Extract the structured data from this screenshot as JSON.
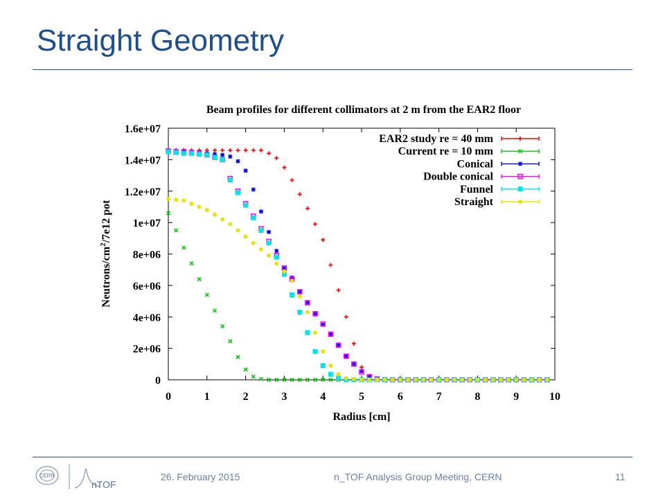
{
  "slide": {
    "title": "Straight Geometry",
    "footer": {
      "date": "26. February 2015",
      "meeting": "n_TOF Analysis Group Meeting, CERN",
      "page": "11"
    },
    "logos": [
      {
        "name": "cern-logo",
        "text": "CERN"
      },
      {
        "name": "ntof-logo",
        "text": "nTOF"
      }
    ],
    "colors": {
      "title": "#1f4e8f",
      "footer_text": "#6a7fa6",
      "rule": "#1f4e8f"
    }
  },
  "chart_data": {
    "type": "scatter",
    "title": "Beam profiles for different collimators at 2 m from the EAR2 floor",
    "xlabel": "Radius [cm]",
    "ylabel_parts": [
      "Neutrons/cm",
      "2",
      "/7e12 pot"
    ],
    "xlim": [
      0,
      10
    ],
    "ylim": [
      0,
      16000000
    ],
    "xticks": [
      0,
      1,
      2,
      3,
      4,
      5,
      6,
      7,
      8,
      9,
      10
    ],
    "xtick_labels": [
      "0",
      "1",
      "2",
      "3",
      "4",
      "5",
      "6",
      "7",
      "8",
      "9",
      "10"
    ],
    "yticks": [
      0,
      2000000,
      4000000,
      6000000,
      8000000,
      10000000,
      12000000,
      14000000,
      16000000
    ],
    "ytick_labels": [
      "0",
      "2e+06",
      "4e+06",
      "6e+06",
      "8e+06",
      "1e+07",
      "1.2e+07",
      "1.4e+07",
      "1.6e+07"
    ],
    "grid": false,
    "legend_position": "top-right",
    "series": [
      {
        "name": "EAR2 study re = 40 mm",
        "color": "#ff0000",
        "marker": "plus",
        "x": [
          0,
          0.2,
          0.4,
          0.6,
          0.8,
          1.0,
          1.2,
          1.4,
          1.6,
          1.8,
          2.0,
          2.2,
          2.4,
          2.6,
          2.8,
          3.0,
          3.2,
          3.4,
          3.6,
          3.8,
          4.0,
          4.2,
          4.4,
          4.6,
          4.8,
          5.0,
          5.2,
          5.4,
          5.6,
          5.8,
          6.0,
          6.2,
          6.4,
          6.6,
          6.8,
          7.0,
          7.2,
          7.4,
          7.6,
          7.8,
          8.0,
          8.2,
          8.4,
          8.6,
          8.8,
          9.0,
          9.2,
          9.4,
          9.6,
          9.8
        ],
        "y": [
          14600000,
          14600000,
          14600000,
          14600000,
          14600000,
          14600000,
          14600000,
          14600000,
          14600000,
          14600000,
          14600000,
          14600000,
          14600000,
          14400000,
          14100000,
          13500000,
          12700000,
          11800000,
          10900000,
          9900000,
          8900000,
          7300000,
          5700000,
          4000000,
          2300000,
          800000,
          150000,
          50000,
          0,
          0,
          0,
          0,
          0,
          0,
          0,
          0,
          0,
          0,
          0,
          0,
          0,
          0,
          0,
          0,
          0,
          0,
          0,
          0,
          0,
          0
        ]
      },
      {
        "name": "Current re = 10 mm",
        "color": "#00cc00",
        "marker": "cross",
        "x": [
          0,
          0.2,
          0.4,
          0.6,
          0.8,
          1.0,
          1.2,
          1.4,
          1.6,
          1.8,
          2.0,
          2.2,
          2.4,
          2.6,
          2.8,
          3.0,
          3.2,
          3.4,
          3.6,
          3.8,
          4.0,
          4.2,
          4.4,
          4.6,
          4.8,
          5.0,
          5.2,
          5.4,
          5.6,
          5.8,
          6.0,
          6.2,
          6.4,
          6.6,
          6.8,
          7.0,
          7.2,
          7.4,
          7.6,
          7.8,
          8.0,
          8.2,
          8.4,
          8.6,
          8.8,
          9.0,
          9.2,
          9.4,
          9.6,
          9.8
        ],
        "y": [
          10600000,
          9500000,
          8400000,
          7400000,
          6400000,
          5400000,
          4400000,
          3400000,
          2450000,
          1450000,
          650000,
          200000,
          50000,
          0,
          0,
          0,
          0,
          0,
          0,
          0,
          0,
          0,
          0,
          0,
          0,
          0,
          0,
          0,
          0,
          0,
          0,
          0,
          0,
          0,
          0,
          0,
          0,
          0,
          0,
          0,
          0,
          0,
          0,
          0,
          0,
          0,
          0,
          0,
          0,
          0
        ]
      },
      {
        "name": "Conical",
        "color": "#0000ff",
        "marker": "asterisk",
        "x": [
          0,
          0.2,
          0.4,
          0.6,
          0.8,
          1.0,
          1.2,
          1.4,
          1.6,
          1.8,
          2.0,
          2.2,
          2.4,
          2.6,
          2.8,
          3.0,
          3.2,
          3.4,
          3.6,
          3.8,
          4.0,
          4.2,
          4.4,
          4.6,
          4.8,
          5.0,
          5.2,
          5.4,
          5.6,
          5.8,
          6.0,
          6.2,
          6.4,
          6.6,
          6.8,
          7.0,
          7.2,
          7.4,
          7.6,
          7.8,
          8.0,
          8.2,
          8.4,
          8.6,
          8.8,
          9.0,
          9.2,
          9.4,
          9.6,
          9.8
        ],
        "y": [
          14600000,
          14550000,
          14550000,
          14500000,
          14450000,
          14400000,
          14350000,
          14300000,
          14200000,
          13900000,
          13300000,
          12100000,
          10700000,
          9400000,
          8200000,
          7100000,
          6500000,
          5600000,
          4900000,
          4200000,
          3500000,
          2900000,
          2200000,
          1500000,
          1000000,
          550000,
          200000,
          50000,
          0,
          0,
          0,
          0,
          0,
          0,
          0,
          0,
          0,
          0,
          0,
          0,
          0,
          0,
          0,
          0,
          0,
          0,
          0,
          0,
          0,
          0
        ]
      },
      {
        "name": "Double conical",
        "color": "#ff00ff",
        "marker": "square",
        "x": [
          0,
          0.2,
          0.4,
          0.6,
          0.8,
          1.0,
          1.2,
          1.4,
          1.6,
          1.8,
          2.0,
          2.2,
          2.4,
          2.6,
          2.8,
          3.0,
          3.2,
          3.4,
          3.6,
          3.8,
          4.0,
          4.2,
          4.4,
          4.6,
          4.8,
          5.0,
          5.2,
          5.4,
          5.6,
          5.8,
          6.0,
          6.2,
          6.4,
          6.6,
          6.8,
          7.0,
          7.2,
          7.4,
          7.6,
          7.8,
          8.0,
          8.2,
          8.4,
          8.6,
          8.8,
          9.0,
          9.2,
          9.4,
          9.6,
          9.8
        ],
        "y": [
          14550000,
          14500000,
          14500000,
          14450000,
          14400000,
          14300000,
          14150000,
          14000000,
          12800000,
          12000000,
          11200000,
          10400000,
          9600000,
          8800000,
          7900000,
          7100000,
          6400000,
          5600000,
          4900000,
          4200000,
          3550000,
          2900000,
          2200000,
          1500000,
          1000000,
          500000,
          200000,
          50000,
          0,
          0,
          0,
          0,
          0,
          0,
          0,
          0,
          0,
          0,
          0,
          0,
          0,
          0,
          0,
          0,
          0,
          0,
          0,
          0,
          0,
          0
        ]
      },
      {
        "name": "Funnel",
        "color": "#00e5e5",
        "marker": "filled-square",
        "x": [
          0,
          0.2,
          0.4,
          0.6,
          0.8,
          1.0,
          1.2,
          1.4,
          1.6,
          1.8,
          2.0,
          2.2,
          2.4,
          2.6,
          2.8,
          3.0,
          3.2,
          3.4,
          3.6,
          3.8,
          4.0,
          4.2,
          4.4,
          4.6,
          4.8,
          5.0,
          5.2,
          5.4,
          5.6,
          5.8,
          6.0,
          6.2,
          6.4,
          6.6,
          6.8,
          7.0,
          7.2,
          7.4,
          7.6,
          7.8,
          8.0,
          8.2,
          8.4,
          8.6,
          8.8,
          9.0,
          9.2,
          9.4,
          9.6,
          9.8
        ],
        "y": [
          14500000,
          14450000,
          14400000,
          14400000,
          14350000,
          14300000,
          14150000,
          14000000,
          12700000,
          11900000,
          11100000,
          10300000,
          9500000,
          8700000,
          7800000,
          6700000,
          5400000,
          4300000,
          3000000,
          1800000,
          900000,
          350000,
          100000,
          0,
          0,
          0,
          0,
          0,
          0,
          0,
          0,
          0,
          0,
          0,
          0,
          0,
          0,
          0,
          0,
          0,
          0,
          0,
          0,
          0,
          0,
          0,
          0,
          0,
          0,
          0
        ]
      },
      {
        "name": "Straight",
        "color": "#e5e500",
        "marker": "filled-circle",
        "x": [
          0,
          0.2,
          0.4,
          0.6,
          0.8,
          1.0,
          1.2,
          1.4,
          1.6,
          1.8,
          2.0,
          2.2,
          2.4,
          2.6,
          2.8,
          3.0,
          3.2,
          3.4,
          3.6,
          3.8,
          4.0,
          4.2,
          4.4,
          4.6,
          4.8,
          5.0,
          5.2,
          5.4,
          5.6,
          5.8,
          6.0,
          6.2,
          6.4,
          6.6,
          6.8,
          7.0,
          7.2,
          7.4,
          7.6,
          7.8,
          8.0,
          8.2,
          8.4,
          8.6,
          8.8,
          9.0,
          9.2,
          9.4,
          9.6,
          9.8
        ],
        "y": [
          11500000,
          11450000,
          11400000,
          11200000,
          11000000,
          10800000,
          10500000,
          10200000,
          9900000,
          9500000,
          9100000,
          8700000,
          8300000,
          7900000,
          7400000,
          6900000,
          6300000,
          5300000,
          4300000,
          3000000,
          1800000,
          900000,
          350000,
          100000,
          50000,
          0,
          0,
          0,
          0,
          0,
          0,
          0,
          0,
          0,
          0,
          0,
          0,
          0,
          0,
          0,
          0,
          0,
          0,
          0,
          0,
          0,
          0,
          0,
          0,
          0
        ]
      }
    ]
  }
}
